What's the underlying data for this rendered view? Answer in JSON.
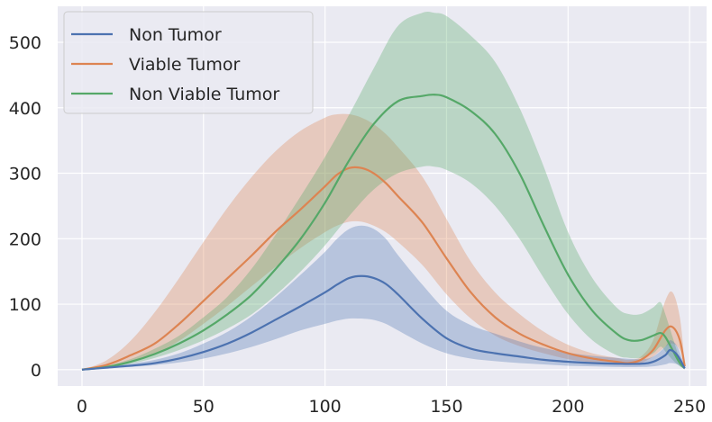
{
  "chart_data": {
    "type": "line",
    "title": "",
    "xlabel": "",
    "ylabel": "",
    "xlim": [
      -10,
      257
    ],
    "ylim": [
      -25,
      555
    ],
    "xticks": [
      0,
      50,
      100,
      150,
      200,
      250
    ],
    "yticks": [
      0,
      100,
      200,
      300,
      400,
      500
    ],
    "grid": true,
    "legend_position": "top-left",
    "background": "#eaeaf2",
    "series": [
      {
        "name": "Non Tumor",
        "color": "#4c72b0",
        "x": [
          0,
          10,
          20,
          30,
          40,
          50,
          60,
          70,
          80,
          90,
          100,
          105,
          110,
          115,
          120,
          125,
          130,
          140,
          150,
          160,
          170,
          180,
          190,
          200,
          210,
          220,
          230,
          235,
          240,
          242,
          245,
          248
        ],
        "mean": [
          0,
          3,
          6,
          10,
          17,
          27,
          40,
          57,
          77,
          97,
          118,
          130,
          140,
          143,
          140,
          131,
          115,
          78,
          48,
          32,
          25,
          20,
          15,
          12,
          10,
          9,
          9,
          12,
          22,
          30,
          22,
          2
        ],
        "lower": [
          0,
          2,
          4,
          7,
          11,
          17,
          25,
          35,
          47,
          60,
          70,
          75,
          78,
          78,
          76,
          70,
          60,
          40,
          25,
          17,
          13,
          10,
          8,
          6,
          5,
          4,
          4,
          5,
          8,
          10,
          8,
          0
        ],
        "upper": [
          0,
          4,
          9,
          15,
          25,
          40,
          58,
          82,
          112,
          145,
          180,
          200,
          215,
          220,
          215,
          200,
          175,
          130,
          90,
          68,
          55,
          43,
          33,
          26,
          21,
          18,
          16,
          20,
          35,
          45,
          35,
          4
        ]
      },
      {
        "name": "Viable Tumor",
        "color": "#dd8452",
        "x": [
          0,
          10,
          20,
          30,
          40,
          50,
          60,
          70,
          80,
          90,
          100,
          105,
          110,
          115,
          120,
          125,
          130,
          140,
          150,
          160,
          170,
          180,
          190,
          200,
          210,
          220,
          225,
          230,
          235,
          240,
          243,
          246,
          248
        ],
        "mean": [
          0,
          7,
          22,
          40,
          70,
          105,
          140,
          175,
          212,
          245,
          280,
          298,
          308,
          308,
          300,
          285,
          265,
          225,
          170,
          118,
          80,
          55,
          38,
          25,
          17,
          12,
          10,
          15,
          30,
          60,
          65,
          45,
          5
        ],
        "lower": [
          0,
          4,
          12,
          24,
          44,
          70,
          98,
          128,
          158,
          186,
          210,
          220,
          226,
          226,
          220,
          210,
          195,
          160,
          115,
          78,
          52,
          36,
          25,
          16,
          11,
          8,
          7,
          10,
          20,
          35,
          40,
          30,
          3
        ],
        "upper": [
          0,
          14,
          44,
          88,
          140,
          195,
          248,
          295,
          335,
          365,
          385,
          390,
          390,
          385,
          375,
          360,
          340,
          295,
          230,
          165,
          118,
          85,
          58,
          38,
          25,
          18,
          15,
          20,
          45,
          105,
          118,
          80,
          8
        ]
      },
      {
        "name": " Non Viable Tumor",
        "color": "#55a868",
        "x": [
          0,
          10,
          20,
          30,
          40,
          50,
          60,
          70,
          80,
          90,
          100,
          110,
          120,
          130,
          140,
          145,
          150,
          160,
          170,
          180,
          190,
          200,
          210,
          220,
          225,
          230,
          235,
          238,
          240,
          243,
          246,
          248
        ],
        "mean": [
          0,
          4,
          12,
          24,
          40,
          60,
          85,
          115,
          155,
          200,
          255,
          320,
          375,
          410,
          418,
          420,
          416,
          395,
          360,
          300,
          220,
          145,
          90,
          55,
          45,
          45,
          52,
          56,
          50,
          30,
          10,
          2
        ],
        "lower": [
          0,
          3,
          9,
          18,
          30,
          45,
          63,
          85,
          115,
          150,
          190,
          235,
          275,
          300,
          310,
          310,
          305,
          285,
          250,
          200,
          140,
          85,
          45,
          22,
          18,
          18,
          25,
          35,
          28,
          15,
          5,
          1
        ],
        "upper": [
          0,
          6,
          16,
          32,
          52,
          80,
          112,
          155,
          208,
          265,
          325,
          390,
          460,
          525,
          545,
          545,
          540,
          510,
          470,
          400,
          310,
          210,
          140,
          95,
          85,
          85,
          95,
          103,
          85,
          50,
          15,
          3
        ]
      }
    ]
  }
}
